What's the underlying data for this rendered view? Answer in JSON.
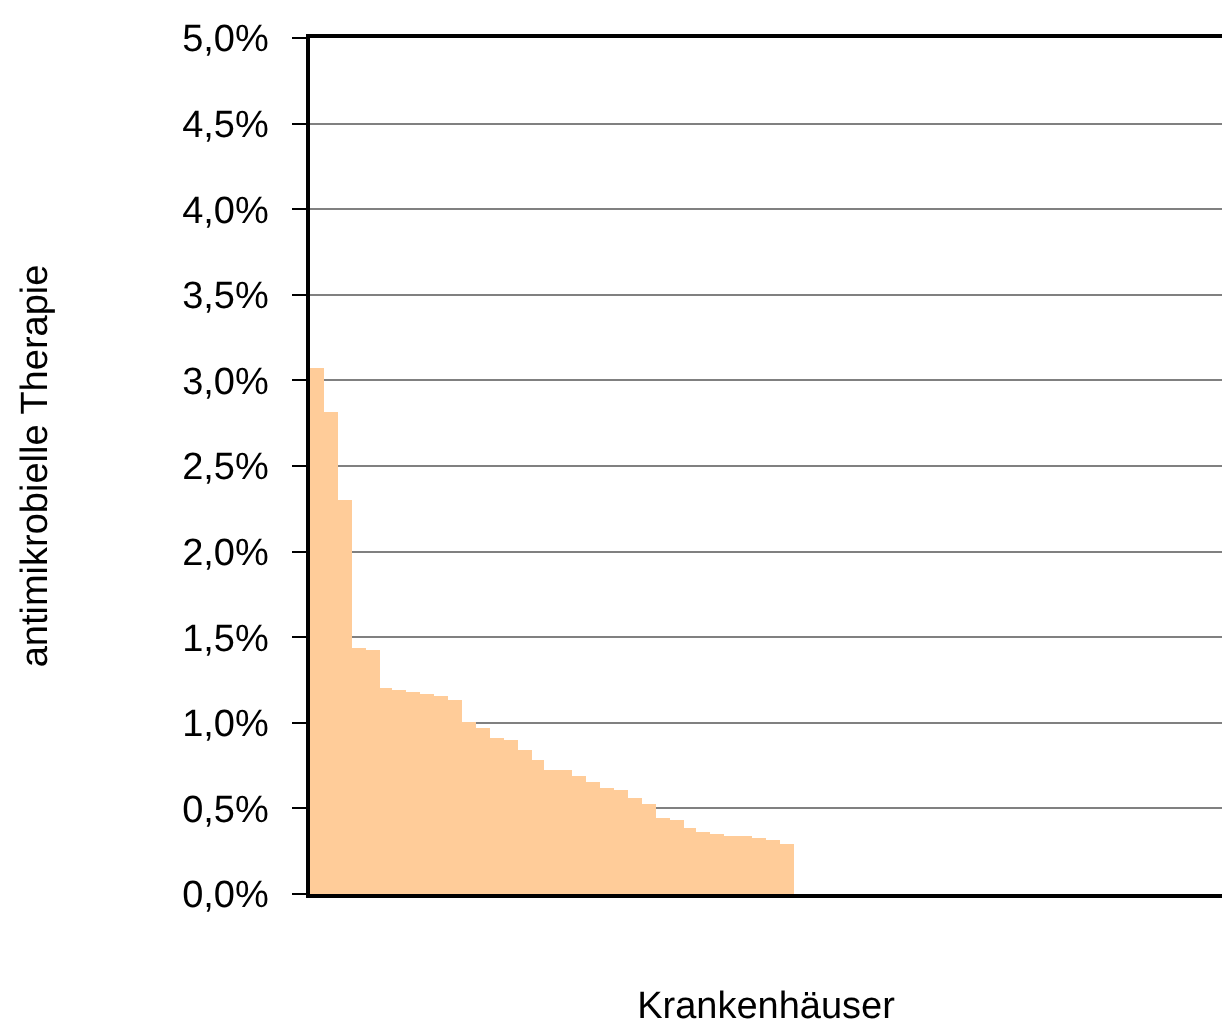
{
  "chart_data": {
    "type": "bar",
    "xlabel": "Krankenhäuser",
    "ylabel": "antimikrobielle Therapie",
    "categories": [
      null,
      null,
      null,
      null,
      null,
      null,
      null,
      null,
      null,
      null,
      null,
      null,
      null,
      null,
      null,
      null,
      null,
      null,
      null,
      null,
      null,
      null,
      null,
      null,
      null,
      null,
      null,
      null,
      null,
      null,
      null,
      null,
      null,
      null,
      null,
      null,
      null,
      null,
      null,
      null,
      null,
      null,
      null,
      null,
      null,
      null,
      null,
      null,
      null,
      null,
      null,
      null,
      null,
      null,
      null,
      null,
      null,
      null,
      null,
      null,
      null,
      null,
      null,
      null,
      null,
      null
    ],
    "values": [
      3.07,
      2.82,
      2.3,
      1.44,
      1.42,
      1.2,
      1.19,
      1.18,
      1.17,
      1.16,
      1.13,
      1.0,
      0.97,
      0.91,
      0.9,
      0.84,
      0.78,
      0.73,
      0.72,
      0.69,
      0.66,
      0.62,
      0.61,
      0.56,
      0.52,
      0.44,
      0.43,
      0.39,
      0.36,
      0.35,
      0.34,
      0.34,
      0.33,
      0.31,
      0.29,
      null,
      null,
      null,
      null,
      null,
      null,
      null,
      null,
      null,
      null,
      null,
      null,
      null,
      null,
      null,
      null,
      null,
      null,
      null,
      null,
      null,
      null,
      null,
      null,
      null,
      null,
      null,
      null,
      null,
      null,
      null
    ],
    "color": "#ffcc99",
    "ylim": [
      0,
      5
    ],
    "yticks": [
      {
        "value": 0,
        "label": "0,0%"
      },
      {
        "value": 0.5,
        "label": "0,5%"
      },
      {
        "value": 1,
        "label": "1,0%"
      },
      {
        "value": 1.5,
        "label": "1,5%"
      },
      {
        "value": 2,
        "label": "2,0%"
      },
      {
        "value": 2.5,
        "label": "2,5%"
      },
      {
        "value": 3,
        "label": "3,0%"
      },
      {
        "value": 3.5,
        "label": "3,5%"
      },
      {
        "value": 4,
        "label": "4,0%"
      },
      {
        "value": 4.5,
        "label": "4,5%"
      },
      {
        "value": 5,
        "label": "5,0%"
      }
    ],
    "grid": "y"
  }
}
